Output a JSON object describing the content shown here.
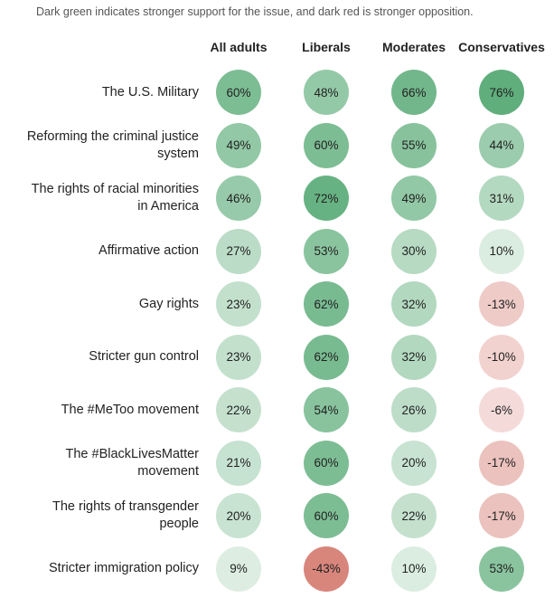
{
  "chart_data": {
    "type": "heatmap",
    "subtitle": "Dark green indicates stronger support for the issue, and dark red is stronger opposition.",
    "columns": [
      "All adults",
      "Liberals",
      "Moderates",
      "Conservatives"
    ],
    "rows": [
      {
        "label": "The U.S. Military",
        "values": [
          60,
          48,
          66,
          76
        ]
      },
      {
        "label": "Reforming the criminal justice system",
        "values": [
          49,
          60,
          55,
          44
        ]
      },
      {
        "label": "The rights of racial minorities in America",
        "values": [
          46,
          72,
          49,
          31
        ]
      },
      {
        "label": "Affirmative action",
        "values": [
          27,
          53,
          30,
          10
        ]
      },
      {
        "label": "Gay rights",
        "values": [
          23,
          62,
          32,
          -13
        ]
      },
      {
        "label": "Stricter gun control",
        "values": [
          23,
          62,
          32,
          -10
        ]
      },
      {
        "label": "The #MeToo movement",
        "values": [
          22,
          54,
          26,
          -6
        ]
      },
      {
        "label": "The #BlackLivesMatter movement",
        "values": [
          21,
          60,
          20,
          -17
        ]
      },
      {
        "label": "The rights of transgender people",
        "values": [
          20,
          60,
          22,
          -17
        ]
      },
      {
        "label": "Stricter immigration policy",
        "values": [
          9,
          -43,
          10,
          53
        ]
      }
    ],
    "value_suffix": "%",
    "colors": {
      "positive_light": "#eef6f0",
      "positive_dark": "#5fae7c",
      "negative_light": "#f8e9e8",
      "negative_dark": "#d8867c"
    }
  }
}
